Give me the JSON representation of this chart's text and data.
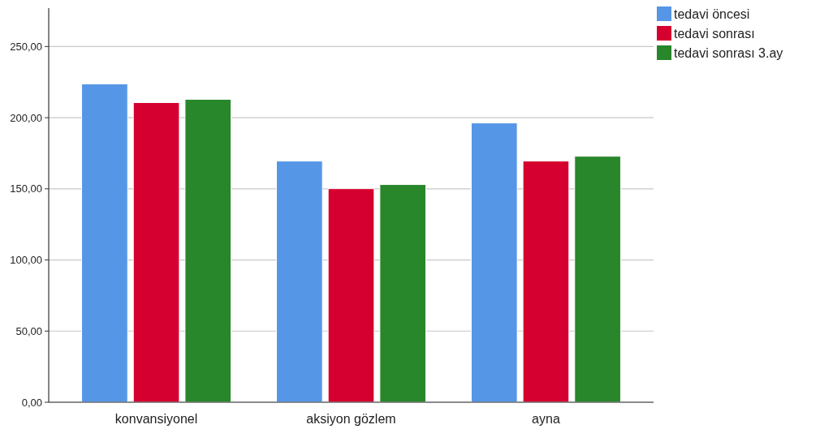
{
  "chart_data": {
    "type": "bar",
    "categories": [
      "konvansiyonel",
      "aksiyon gözlem",
      "ayna"
    ],
    "series": [
      {
        "name": "tedavi öncesi",
        "color": "#5596e6",
        "values": [
          223.7,
          169.5,
          196.3
        ]
      },
      {
        "name": "tedavi sonrası",
        "color": "#d5002f",
        "values": [
          210.6,
          150.1,
          169.5
        ]
      },
      {
        "name": "tedavi sonrası 3.ay",
        "color": "#28862b",
        "values": [
          212.9,
          153.0,
          172.9
        ]
      }
    ],
    "ylim": [
      0,
      277
    ],
    "yticks": [
      {
        "value": 0,
        "label": "0,00"
      },
      {
        "value": 50,
        "label": "50,00"
      },
      {
        "value": 100,
        "label": "100,00"
      },
      {
        "value": 150,
        "label": "150,00"
      },
      {
        "value": 200,
        "label": "200,00"
      },
      {
        "value": 250,
        "label": "250,00"
      }
    ],
    "grid": "y",
    "legend": "top right"
  }
}
